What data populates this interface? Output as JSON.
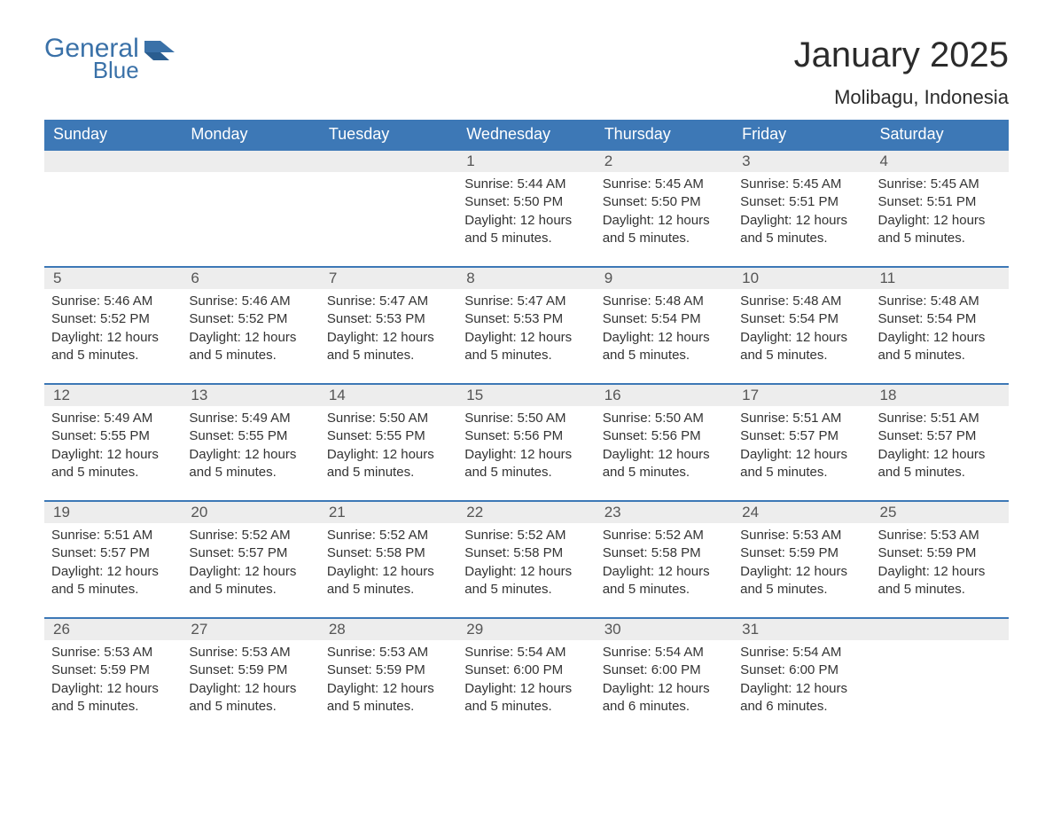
{
  "logo": {
    "word1": "General",
    "word2": "Blue",
    "brand_color": "#3a71a8"
  },
  "title": "January 2025",
  "location": "Molibagu, Indonesia",
  "colors": {
    "header_bg": "#3d78b6",
    "header_text": "#ffffff",
    "row_border": "#3d78b6",
    "daynum_bg": "#ededed",
    "daynum_text": "#555555",
    "body_text": "#333333",
    "page_bg": "#ffffff"
  },
  "fonts": {
    "title_size_pt": 40,
    "location_size_pt": 22,
    "dow_size_pt": 18,
    "daynum_size_pt": 17,
    "body_size_pt": 15,
    "family": "Arial"
  },
  "days_of_week": [
    "Sunday",
    "Monday",
    "Tuesday",
    "Wednesday",
    "Thursday",
    "Friday",
    "Saturday"
  ],
  "weeks": [
    [
      {
        "n": "",
        "sunrise": "",
        "sunset": "",
        "daylight": ""
      },
      {
        "n": "",
        "sunrise": "",
        "sunset": "",
        "daylight": ""
      },
      {
        "n": "",
        "sunrise": "",
        "sunset": "",
        "daylight": ""
      },
      {
        "n": "1",
        "sunrise": "Sunrise: 5:44 AM",
        "sunset": "Sunset: 5:50 PM",
        "daylight": "Daylight: 12 hours and 5 minutes."
      },
      {
        "n": "2",
        "sunrise": "Sunrise: 5:45 AM",
        "sunset": "Sunset: 5:50 PM",
        "daylight": "Daylight: 12 hours and 5 minutes."
      },
      {
        "n": "3",
        "sunrise": "Sunrise: 5:45 AM",
        "sunset": "Sunset: 5:51 PM",
        "daylight": "Daylight: 12 hours and 5 minutes."
      },
      {
        "n": "4",
        "sunrise": "Sunrise: 5:45 AM",
        "sunset": "Sunset: 5:51 PM",
        "daylight": "Daylight: 12 hours and 5 minutes."
      }
    ],
    [
      {
        "n": "5",
        "sunrise": "Sunrise: 5:46 AM",
        "sunset": "Sunset: 5:52 PM",
        "daylight": "Daylight: 12 hours and 5 minutes."
      },
      {
        "n": "6",
        "sunrise": "Sunrise: 5:46 AM",
        "sunset": "Sunset: 5:52 PM",
        "daylight": "Daylight: 12 hours and 5 minutes."
      },
      {
        "n": "7",
        "sunrise": "Sunrise: 5:47 AM",
        "sunset": "Sunset: 5:53 PM",
        "daylight": "Daylight: 12 hours and 5 minutes."
      },
      {
        "n": "8",
        "sunrise": "Sunrise: 5:47 AM",
        "sunset": "Sunset: 5:53 PM",
        "daylight": "Daylight: 12 hours and 5 minutes."
      },
      {
        "n": "9",
        "sunrise": "Sunrise: 5:48 AM",
        "sunset": "Sunset: 5:54 PM",
        "daylight": "Daylight: 12 hours and 5 minutes."
      },
      {
        "n": "10",
        "sunrise": "Sunrise: 5:48 AM",
        "sunset": "Sunset: 5:54 PM",
        "daylight": "Daylight: 12 hours and 5 minutes."
      },
      {
        "n": "11",
        "sunrise": "Sunrise: 5:48 AM",
        "sunset": "Sunset: 5:54 PM",
        "daylight": "Daylight: 12 hours and 5 minutes."
      }
    ],
    [
      {
        "n": "12",
        "sunrise": "Sunrise: 5:49 AM",
        "sunset": "Sunset: 5:55 PM",
        "daylight": "Daylight: 12 hours and 5 minutes."
      },
      {
        "n": "13",
        "sunrise": "Sunrise: 5:49 AM",
        "sunset": "Sunset: 5:55 PM",
        "daylight": "Daylight: 12 hours and 5 minutes."
      },
      {
        "n": "14",
        "sunrise": "Sunrise: 5:50 AM",
        "sunset": "Sunset: 5:55 PM",
        "daylight": "Daylight: 12 hours and 5 minutes."
      },
      {
        "n": "15",
        "sunrise": "Sunrise: 5:50 AM",
        "sunset": "Sunset: 5:56 PM",
        "daylight": "Daylight: 12 hours and 5 minutes."
      },
      {
        "n": "16",
        "sunrise": "Sunrise: 5:50 AM",
        "sunset": "Sunset: 5:56 PM",
        "daylight": "Daylight: 12 hours and 5 minutes."
      },
      {
        "n": "17",
        "sunrise": "Sunrise: 5:51 AM",
        "sunset": "Sunset: 5:57 PM",
        "daylight": "Daylight: 12 hours and 5 minutes."
      },
      {
        "n": "18",
        "sunrise": "Sunrise: 5:51 AM",
        "sunset": "Sunset: 5:57 PM",
        "daylight": "Daylight: 12 hours and 5 minutes."
      }
    ],
    [
      {
        "n": "19",
        "sunrise": "Sunrise: 5:51 AM",
        "sunset": "Sunset: 5:57 PM",
        "daylight": "Daylight: 12 hours and 5 minutes."
      },
      {
        "n": "20",
        "sunrise": "Sunrise: 5:52 AM",
        "sunset": "Sunset: 5:57 PM",
        "daylight": "Daylight: 12 hours and 5 minutes."
      },
      {
        "n": "21",
        "sunrise": "Sunrise: 5:52 AM",
        "sunset": "Sunset: 5:58 PM",
        "daylight": "Daylight: 12 hours and 5 minutes."
      },
      {
        "n": "22",
        "sunrise": "Sunrise: 5:52 AM",
        "sunset": "Sunset: 5:58 PM",
        "daylight": "Daylight: 12 hours and 5 minutes."
      },
      {
        "n": "23",
        "sunrise": "Sunrise: 5:52 AM",
        "sunset": "Sunset: 5:58 PM",
        "daylight": "Daylight: 12 hours and 5 minutes."
      },
      {
        "n": "24",
        "sunrise": "Sunrise: 5:53 AM",
        "sunset": "Sunset: 5:59 PM",
        "daylight": "Daylight: 12 hours and 5 minutes."
      },
      {
        "n": "25",
        "sunrise": "Sunrise: 5:53 AM",
        "sunset": "Sunset: 5:59 PM",
        "daylight": "Daylight: 12 hours and 5 minutes."
      }
    ],
    [
      {
        "n": "26",
        "sunrise": "Sunrise: 5:53 AM",
        "sunset": "Sunset: 5:59 PM",
        "daylight": "Daylight: 12 hours and 5 minutes."
      },
      {
        "n": "27",
        "sunrise": "Sunrise: 5:53 AM",
        "sunset": "Sunset: 5:59 PM",
        "daylight": "Daylight: 12 hours and 5 minutes."
      },
      {
        "n": "28",
        "sunrise": "Sunrise: 5:53 AM",
        "sunset": "Sunset: 5:59 PM",
        "daylight": "Daylight: 12 hours and 5 minutes."
      },
      {
        "n": "29",
        "sunrise": "Sunrise: 5:54 AM",
        "sunset": "Sunset: 6:00 PM",
        "daylight": "Daylight: 12 hours and 5 minutes."
      },
      {
        "n": "30",
        "sunrise": "Sunrise: 5:54 AM",
        "sunset": "Sunset: 6:00 PM",
        "daylight": "Daylight: 12 hours and 6 minutes."
      },
      {
        "n": "31",
        "sunrise": "Sunrise: 5:54 AM",
        "sunset": "Sunset: 6:00 PM",
        "daylight": "Daylight: 12 hours and 6 minutes."
      },
      {
        "n": "",
        "sunrise": "",
        "sunset": "",
        "daylight": ""
      }
    ]
  ]
}
